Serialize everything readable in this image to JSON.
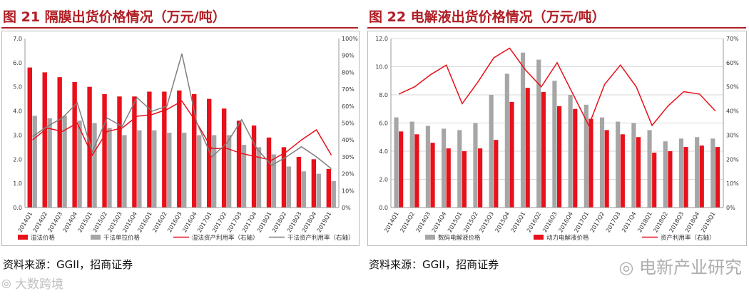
{
  "chart_data": [
    {
      "type": "bar",
      "title": "图 21  隔膜出货价格情况（万元/吨）",
      "categories": [
        "2014Q1",
        "2014Q2",
        "2014Q3",
        "2014Q4",
        "2015Q1",
        "2015Q2",
        "2015Q3",
        "2015Q4",
        "2016Q1",
        "2016Q2",
        "2016Q3",
        "2016Q4",
        "2017Q1",
        "2017Q2",
        "2017Q3",
        "2017Q4",
        "2018Q1",
        "2018Q2",
        "2018Q3",
        "2018Q4",
        "2019Q1"
      ],
      "series": [
        {
          "name": "湿法价格",
          "kind": "bar",
          "axis": "left",
          "color": "#e8101a",
          "values": [
            5.8,
            5.6,
            5.4,
            5.2,
            5.0,
            4.7,
            4.6,
            4.6,
            4.8,
            4.8,
            4.85,
            4.7,
            4.5,
            4.1,
            3.6,
            3.4,
            2.9,
            2.5,
            2.1,
            2.0,
            1.6
          ]
        },
        {
          "name": "干法单拉价格",
          "kind": "bar",
          "axis": "left",
          "color": "#a6a6a6",
          "values": [
            3.8,
            3.7,
            3.8,
            3.6,
            3.5,
            3.3,
            3.0,
            3.2,
            3.2,
            3.1,
            3.1,
            3.0,
            3.0,
            3.0,
            2.6,
            2.5,
            2.2,
            1.7,
            1.5,
            1.4,
            1.1
          ]
        },
        {
          "name": "湿法资产利用率（右轴）",
          "kind": "line",
          "axis": "right",
          "color": "#e8101a",
          "values": [
            40,
            47,
            45,
            50,
            31,
            45,
            47,
            54,
            55,
            58,
            63,
            50,
            35,
            35,
            32,
            30,
            28,
            33,
            40,
            46,
            31
          ]
        },
        {
          "name": "干法资产利用率（右轴）",
          "kind": "line",
          "axis": "right",
          "color": "#7f7f7f",
          "values": [
            42,
            48,
            53,
            62,
            33,
            53,
            48,
            65,
            57,
            60,
            91,
            50,
            30,
            38,
            52,
            35,
            25,
            30,
            36,
            30,
            23
          ]
        }
      ],
      "ylim": [
        0,
        7
      ],
      "yticks": [
        "0.0",
        "1.0",
        "2.0",
        "3.0",
        "4.0",
        "5.0",
        "6.0",
        "7.0"
      ],
      "y2lim": [
        0,
        100
      ],
      "y2ticks": [
        "0%",
        "10%",
        "20%",
        "30%",
        "40%",
        "50%",
        "60%",
        "70%",
        "80%",
        "90%",
        "100%"
      ],
      "grid": false,
      "legend": "bottom",
      "source": "资料来源：GGII，招商证券"
    },
    {
      "type": "bar",
      "title": "图 22  电解液出货价格情况（万元/吨）",
      "categories": [
        "2014Q1",
        "2014Q2",
        "2014Q3",
        "2014Q4",
        "2015Q1",
        "2015Q2",
        "2015Q3",
        "2015Q4",
        "2016Q1",
        "2016Q2",
        "2016Q3",
        "2016Q4",
        "2017Q1",
        "2017Q2",
        "2017Q3",
        "2017Q4",
        "2018Q1",
        "2018Q2",
        "2018Q3",
        "2018Q4",
        "2019Q1"
      ],
      "series": [
        {
          "name": "数码电解液价格",
          "kind": "bar",
          "axis": "left",
          "color": "#a6a6a6",
          "values": [
            6.4,
            6.1,
            5.8,
            5.6,
            5.5,
            6.0,
            8.0,
            9.5,
            11.0,
            10.5,
            9.0,
            8.0,
            7.3,
            6.4,
            6.1,
            6.0,
            5.5,
            4.7,
            4.9,
            5.0,
            4.9
          ]
        },
        {
          "name": "动力电解液价格",
          "kind": "bar",
          "axis": "left",
          "color": "#e8101a",
          "values": [
            5.4,
            5.2,
            4.6,
            4.2,
            4.0,
            4.2,
            4.8,
            7.5,
            8.5,
            8.2,
            7.2,
            7.0,
            6.3,
            5.5,
            5.2,
            5.0,
            3.9,
            4.0,
            4.3,
            4.4,
            4.3
          ]
        },
        {
          "name": "资产利用率（右轴）",
          "kind": "line",
          "axis": "right",
          "color": "#e8101a",
          "values": [
            47,
            50,
            55,
            59,
            43,
            52,
            62,
            66,
            57,
            50,
            60,
            47,
            34,
            51,
            59,
            50,
            34,
            42,
            48,
            47,
            40
          ]
        }
      ],
      "ylim": [
        0,
        12
      ],
      "yticks": [
        "0.0",
        "2.0",
        "4.0",
        "6.0",
        "8.0",
        "10.0",
        "12.0"
      ],
      "y2lim": [
        0,
        70
      ],
      "y2ticks": [
        "0%",
        "10%",
        "20%",
        "30%",
        "40%",
        "50%",
        "60%",
        "70%"
      ],
      "grid": true,
      "legend": "bottom",
      "source": "资料来源：GGII，招商证券"
    }
  ],
  "watermarks": {
    "right": "电新产业研究",
    "left": "大数跨境"
  }
}
